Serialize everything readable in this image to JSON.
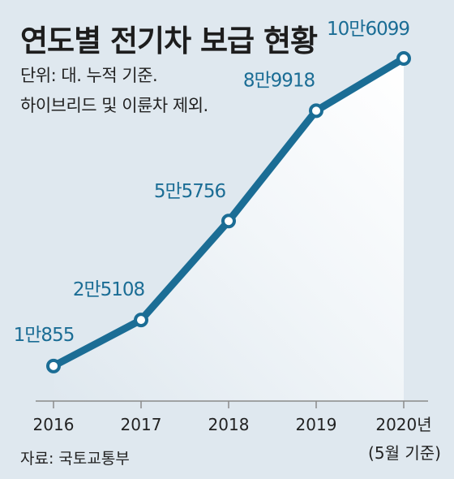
{
  "chart_data": {
    "type": "line",
    "title": "연도별 전기차 보급 현황",
    "notes": [
      "단위: 대. 누적 기준.",
      "하이브리드 및 이륜차 제외."
    ],
    "source": "자료: 국토교통부",
    "categories": [
      "2016",
      "2017",
      "2018",
      "2019",
      "2020년"
    ],
    "category_sublabels": [
      "",
      "",
      "",
      "",
      "(5월 기준)"
    ],
    "values": [
      10855,
      25108,
      55756,
      89918,
      106099
    ],
    "value_labels": [
      "1만855",
      "2만5108",
      "5만5756",
      "8만9918",
      "10만6099"
    ],
    "ylim": [
      0,
      120000
    ],
    "grid": false,
    "colors": {
      "line": "#1b6d95",
      "label": "#1b6d95",
      "background": "#dfe8ef",
      "fill": "#ffffff"
    }
  }
}
